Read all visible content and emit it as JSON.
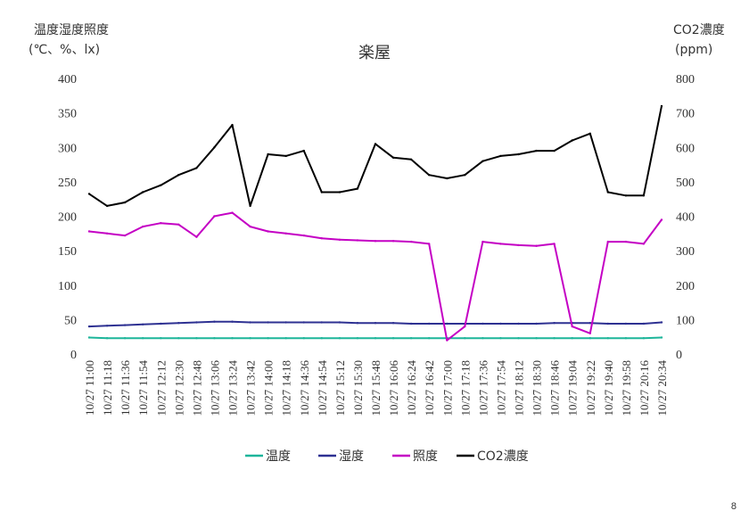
{
  "page_number": "8",
  "chart_data": {
    "type": "line",
    "title": "楽屋",
    "left_axis_label": [
      "温度湿度照度",
      "(℃、%、lx)"
    ],
    "right_axis_label": [
      "CO2濃度",
      "(ppm)"
    ],
    "left_ylim": [
      0,
      400
    ],
    "right_ylim": [
      0,
      800
    ],
    "left_ticks": [
      0,
      50,
      100,
      150,
      200,
      250,
      300,
      350,
      400
    ],
    "right_ticks": [
      0,
      100,
      200,
      300,
      400,
      500,
      600,
      700,
      800
    ],
    "grid": false,
    "legend_position": "bottom",
    "x_labels": [
      "10/27 11:00",
      "10/27 11:18",
      "10/27 11:36",
      "10/27 11:54",
      "10/27 12:12",
      "10/27 12:30",
      "10/27 12:48",
      "10/27 13:06",
      "10/27 13:24",
      "10/27 13:42",
      "10/27 14:00",
      "10/27 14:18",
      "10/27 14:36",
      "10/27 14:54",
      "10/27 15:12",
      "10/27 15:30",
      "10/27 15:48",
      "10/27 16:06",
      "10/27 16:24",
      "10/27 16:42",
      "10/27 17:00",
      "10/27 17:18",
      "10/27 17:36",
      "10/27 17:54",
      "10/27 18:12",
      "10/27 18:30",
      "10/27 18:46",
      "10/27 19:04",
      "10/27 19:22",
      "10/27 19:40",
      "10/27 19:58",
      "10/27 20:16",
      "10/27 20:34"
    ],
    "series": [
      {
        "name": "温度",
        "axis": "left",
        "color": "#1db59a",
        "values": [
          24,
          23,
          23,
          23,
          23,
          23,
          23,
          23,
          23,
          23,
          23,
          23,
          23,
          23,
          23,
          23,
          23,
          23,
          23,
          23,
          23,
          23,
          23,
          23,
          23,
          23,
          23,
          23,
          23,
          23,
          23,
          23,
          24
        ]
      },
      {
        "name": "湿度",
        "axis": "left",
        "color": "#2e3192",
        "values": [
          40,
          41,
          42,
          43,
          44,
          45,
          46,
          47,
          47,
          46,
          46,
          46,
          46,
          46,
          46,
          45,
          45,
          45,
          44,
          44,
          44,
          44,
          44,
          44,
          44,
          44,
          45,
          45,
          45,
          44,
          44,
          44,
          46
        ]
      },
      {
        "name": "照度",
        "axis": "left",
        "color": "#c400c4",
        "values": [
          178,
          175,
          172,
          185,
          190,
          188,
          170,
          200,
          205,
          185,
          178,
          175,
          172,
          168,
          166,
          165,
          164,
          164,
          163,
          160,
          20,
          40,
          163,
          160,
          158,
          157,
          160,
          40,
          30,
          163,
          163,
          160,
          195
        ]
      },
      {
        "name": "CO2濃度",
        "axis": "right",
        "color": "#000000",
        "values": [
          465,
          430,
          440,
          470,
          490,
          520,
          540,
          600,
          665,
          430,
          580,
          575,
          590,
          470,
          470,
          480,
          610,
          570,
          565,
          520,
          510,
          520,
          560,
          575,
          580,
          590,
          590,
          620,
          640,
          470,
          460,
          460,
          720
        ]
      }
    ]
  }
}
